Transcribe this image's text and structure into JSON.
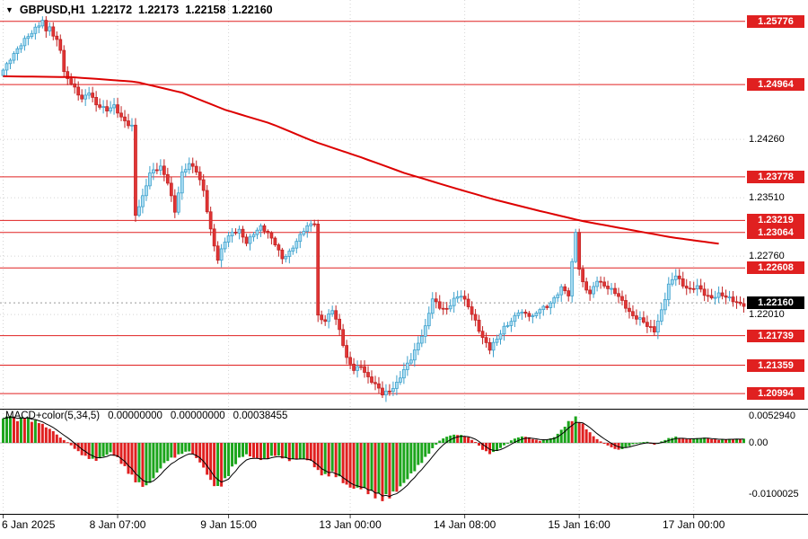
{
  "header": {
    "dropdown_icon": "▼",
    "symbol": "GBPUSD,H1",
    "open": "1.22172",
    "high": "1.22173",
    "low": "1.22158",
    "close": "1.22160"
  },
  "colors": {
    "background": "#ffffff",
    "text": "#000000",
    "grid": "#d4d4d4",
    "separator": "#000000",
    "bull_fill": "#a9dcf2",
    "bull_stroke": "#3a9fcb",
    "bear_fill": "#e23535",
    "bear_stroke": "#c12222",
    "ma_line": "#dd0000",
    "sr_line": "#e02020",
    "level_box_bg": "#e02020",
    "level_box_text": "#ffffff",
    "current_box_bg": "#000000",
    "current_box_text": "#ffffff",
    "macd_up": "#1ca51c",
    "macd_down": "#e02020",
    "macd_line": "#000000",
    "current_dotted": "#999999"
  },
  "chart_data": [
    {
      "type": "candlestick",
      "title": "GBPUSD,H1",
      "symbol": "GBPUSD",
      "timeframe": "H1",
      "n": 208,
      "y_range": [
        1.208,
        1.2605
      ],
      "y_grid": [
        {
          "label": "1.24260",
          "value": 1.2426
        },
        {
          "label": "1.23510",
          "value": 1.2351
        },
        {
          "label": "1.22760",
          "value": 1.2276
        },
        {
          "label": "1.22010",
          "value": 1.2201
        }
      ],
      "x_ticks": [
        {
          "label": "6 Jan 2025",
          "i": 0
        },
        {
          "label": "8 Jan 07:00",
          "i": 32
        },
        {
          "label": "9 Jan 15:00",
          "i": 63
        },
        {
          "label": "13 Jan 00:00",
          "i": 97
        },
        {
          "label": "14 Jan 08:00",
          "i": 129
        },
        {
          "label": "15 Jan 16:00",
          "i": 161
        },
        {
          "label": "17 Jan 00:00",
          "i": 193
        }
      ],
      "sr_levels": [
        {
          "label": "1.25776",
          "value": 1.25776
        },
        {
          "label": "1.24964",
          "value": 1.24964
        },
        {
          "label": "1.23778",
          "value": 1.23778
        },
        {
          "label": "1.23219",
          "value": 1.23219
        },
        {
          "label": "1.23064",
          "value": 1.23064
        },
        {
          "label": "1.22608",
          "value": 1.22608
        },
        {
          "label": "1.21739",
          "value": 1.21739
        },
        {
          "label": "1.21359",
          "value": 1.21359
        },
        {
          "label": "1.20994",
          "value": 1.20994
        }
      ],
      "current": {
        "label": "1.22160",
        "value": 1.2216
      },
      "ma_anchors": [
        [
          0,
          1.2507
        ],
        [
          19,
          1.2506
        ],
        [
          37,
          1.25
        ],
        [
          50,
          1.2486
        ],
        [
          62,
          1.2464
        ],
        [
          75,
          1.2446
        ],
        [
          87,
          1.2423
        ],
        [
          100,
          1.2403
        ],
        [
          112,
          1.2383
        ],
        [
          125,
          1.2365
        ],
        [
          137,
          1.2349
        ],
        [
          150,
          1.2334
        ],
        [
          162,
          1.2321
        ],
        [
          175,
          1.231
        ],
        [
          187,
          1.23
        ],
        [
          200,
          1.2292
        ]
      ],
      "close_anchors": [
        [
          0,
          1.2515
        ],
        [
          2,
          1.2532
        ],
        [
          4,
          1.2544
        ],
        [
          6,
          1.2553
        ],
        [
          8,
          1.256
        ],
        [
          10,
          1.2572
        ],
        [
          11,
          1.2579
        ],
        [
          12,
          1.2566
        ],
        [
          13,
          1.2575
        ],
        [
          14,
          1.256
        ],
        [
          15,
          1.2556
        ],
        [
          16,
          1.2542
        ],
        [
          17,
          1.251
        ],
        [
          19,
          1.2495
        ],
        [
          22,
          1.2478
        ],
        [
          24,
          1.249
        ],
        [
          26,
          1.2472
        ],
        [
          29,
          1.2461
        ],
        [
          31,
          1.2467
        ],
        [
          33,
          1.2455
        ],
        [
          35,
          1.2448
        ],
        [
          36,
          1.2445
        ],
        [
          37,
          1.233
        ],
        [
          39,
          1.235
        ],
        [
          41,
          1.238
        ],
        [
          44,
          1.2392
        ],
        [
          46,
          1.2374
        ],
        [
          48,
          1.2334
        ],
        [
          50,
          1.238
        ],
        [
          52,
          1.2392
        ],
        [
          54,
          1.2386
        ],
        [
          56,
          1.2363
        ],
        [
          58,
          1.2311
        ],
        [
          60,
          1.227
        ],
        [
          62,
          1.2293
        ],
        [
          64,
          1.2305
        ],
        [
          66,
          1.2311
        ],
        [
          68,
          1.2296
        ],
        [
          70,
          1.2305
        ],
        [
          72,
          1.2311
        ],
        [
          74,
          1.2303
        ],
        [
          76,
          1.2293
        ],
        [
          78,
          1.2276
        ],
        [
          80,
          1.2282
        ],
        [
          82,
          1.2293
        ],
        [
          84,
          1.2307
        ],
        [
          86,
          1.2317
        ],
        [
          87,
          1.232
        ],
        [
          88,
          1.2201
        ],
        [
          90,
          1.2195
        ],
        [
          92,
          1.2207
        ],
        [
          94,
          1.2178
        ],
        [
          96,
          1.2143
        ],
        [
          98,
          1.2132
        ],
        [
          100,
          1.2138
        ],
        [
          102,
          1.212
        ],
        [
          104,
          1.2109
        ],
        [
          106,
          1.2097
        ],
        [
          108,
          1.2103
        ],
        [
          110,
          1.2115
        ],
        [
          112,
          1.2132
        ],
        [
          114,
          1.2143
        ],
        [
          116,
          1.2161
        ],
        [
          118,
          1.2184
        ],
        [
          120,
          1.2224
        ],
        [
          122,
          1.2213
        ],
        [
          124,
          1.2207
        ],
        [
          126,
          1.2218
        ],
        [
          128,
          1.2224
        ],
        [
          130,
          1.2213
        ],
        [
          132,
          1.2195
        ],
        [
          134,
          1.2172
        ],
        [
          136,
          1.2155
        ],
        [
          138,
          1.2167
        ],
        [
          140,
          1.2184
        ],
        [
          142,
          1.2195
        ],
        [
          144,
          1.2207
        ],
        [
          146,
          1.2201
        ],
        [
          148,
          1.2195
        ],
        [
          150,
          1.2207
        ],
        [
          152,
          1.2213
        ],
        [
          154,
          1.2224
        ],
        [
          156,
          1.2236
        ],
        [
          158,
          1.2224
        ],
        [
          160,
          1.2305
        ],
        [
          161,
          1.2259
        ],
        [
          162,
          1.2242
        ],
        [
          164,
          1.223
        ],
        [
          166,
          1.2247
        ],
        [
          168,
          1.2236
        ],
        [
          170,
          1.223
        ],
        [
          172,
          1.2224
        ],
        [
          174,
          1.2213
        ],
        [
          176,
          1.2201
        ],
        [
          178,
          1.2195
        ],
        [
          180,
          1.2184
        ],
        [
          182,
          1.2178
        ],
        [
          184,
          1.2207
        ],
        [
          186,
          1.2242
        ],
        [
          188,
          1.2253
        ],
        [
          190,
          1.2236
        ],
        [
          192,
          1.223
        ],
        [
          194,
          1.2238
        ],
        [
          196,
          1.223
        ],
        [
          198,
          1.2224
        ],
        [
          200,
          1.2226
        ],
        [
          202,
          1.2221
        ],
        [
          204,
          1.2218
        ],
        [
          206,
          1.2216
        ],
        [
          207,
          1.2216
        ]
      ]
    },
    {
      "type": "bar",
      "name": "MACD+color(5,34,5)",
      "current_values": [
        "0.00000000",
        "0.00000000",
        "0.00038455"
      ],
      "y_labels": [
        {
          "label": "0.0052940",
          "value": 0.005294
        },
        {
          "label": "0.00",
          "value": 0
        },
        {
          "label": "-0.0100025",
          "value": -0.0100025
        }
      ],
      "zero": 0,
      "y_range": [
        -0.0138,
        0.0065
      ],
      "hist_anchors": [
        [
          0,
          0.0048
        ],
        [
          2,
          0.0055
        ],
        [
          4,
          0.0046
        ],
        [
          6,
          0.0052
        ],
        [
          8,
          0.0044
        ],
        [
          10,
          0.004
        ],
        [
          12,
          0.003
        ],
        [
          14,
          0.0022
        ],
        [
          16,
          0.001
        ],
        [
          18,
          0.0002
        ],
        [
          20,
          -0.001
        ],
        [
          22,
          -0.0022
        ],
        [
          24,
          -0.003
        ],
        [
          26,
          -0.0035
        ],
        [
          28,
          -0.0028
        ],
        [
          30,
          -0.002
        ],
        [
          32,
          -0.003
        ],
        [
          34,
          -0.0048
        ],
        [
          36,
          -0.0065
        ],
        [
          38,
          -0.008
        ],
        [
          40,
          -0.0085
        ],
        [
          42,
          -0.007
        ],
        [
          44,
          -0.005
        ],
        [
          46,
          -0.0035
        ],
        [
          48,
          -0.0028
        ],
        [
          50,
          -0.002
        ],
        [
          52,
          -0.0015
        ],
        [
          54,
          -0.0028
        ],
        [
          56,
          -0.0048
        ],
        [
          58,
          -0.0075
        ],
        [
          60,
          -0.009
        ],
        [
          62,
          -0.0075
        ],
        [
          64,
          -0.005
        ],
        [
          66,
          -0.003
        ],
        [
          68,
          -0.0022
        ],
        [
          70,
          -0.0028
        ],
        [
          72,
          -0.0032
        ],
        [
          74,
          -0.003
        ],
        [
          76,
          -0.0025
        ],
        [
          78,
          -0.003
        ],
        [
          80,
          -0.0035
        ],
        [
          82,
          -0.0032
        ],
        [
          84,
          -0.003
        ],
        [
          86,
          -0.0035
        ],
        [
          88,
          -0.0055
        ],
        [
          90,
          -0.0065
        ],
        [
          92,
          -0.006
        ],
        [
          94,
          -0.007
        ],
        [
          96,
          -0.0085
        ],
        [
          98,
          -0.009
        ],
        [
          100,
          -0.0088
        ],
        [
          102,
          -0.0095
        ],
        [
          104,
          -0.0102
        ],
        [
          106,
          -0.0108
        ],
        [
          108,
          -0.0105
        ],
        [
          110,
          -0.0095
        ],
        [
          112,
          -0.008
        ],
        [
          114,
          -0.0062
        ],
        [
          116,
          -0.0045
        ],
        [
          118,
          -0.0028
        ],
        [
          120,
          -0.001
        ],
        [
          122,
          0.0005
        ],
        [
          124,
          0.0012
        ],
        [
          126,
          0.0015
        ],
        [
          128,
          0.0014
        ],
        [
          130,
          0.001
        ],
        [
          132,
          0.0002
        ],
        [
          134,
          -0.0012
        ],
        [
          136,
          -0.002
        ],
        [
          138,
          -0.0015
        ],
        [
          140,
          -0.0005
        ],
        [
          142,
          0.0004
        ],
        [
          144,
          0.001
        ],
        [
          146,
          0.0012
        ],
        [
          148,
          0.0008
        ],
        [
          150,
          0.0005
        ],
        [
          152,
          0.0008
        ],
        [
          154,
          0.0012
        ],
        [
          156,
          0.0025
        ],
        [
          158,
          0.004
        ],
        [
          160,
          0.0048
        ],
        [
          162,
          0.0035
        ],
        [
          164,
          0.002
        ],
        [
          166,
          0.0008
        ],
        [
          168,
          0
        ],
        [
          170,
          -0.0008
        ],
        [
          172,
          -0.0014
        ],
        [
          174,
          -0.001
        ],
        [
          176,
          -0.0004
        ],
        [
          178,
          0
        ],
        [
          180,
          0.0002
        ],
        [
          182,
          -0.0003
        ],
        [
          184,
          0.0004
        ],
        [
          186,
          0.001
        ],
        [
          188,
          0.0012
        ],
        [
          190,
          0.0008
        ],
        [
          192,
          0.0006
        ],
        [
          194,
          0.0008
        ],
        [
          196,
          0.001
        ],
        [
          198,
          0.0008
        ],
        [
          200,
          0.0007
        ],
        [
          202,
          0.0008
        ],
        [
          204,
          0.0008
        ],
        [
          206,
          0.0007
        ],
        [
          207,
          0.0007
        ]
      ]
    }
  ]
}
